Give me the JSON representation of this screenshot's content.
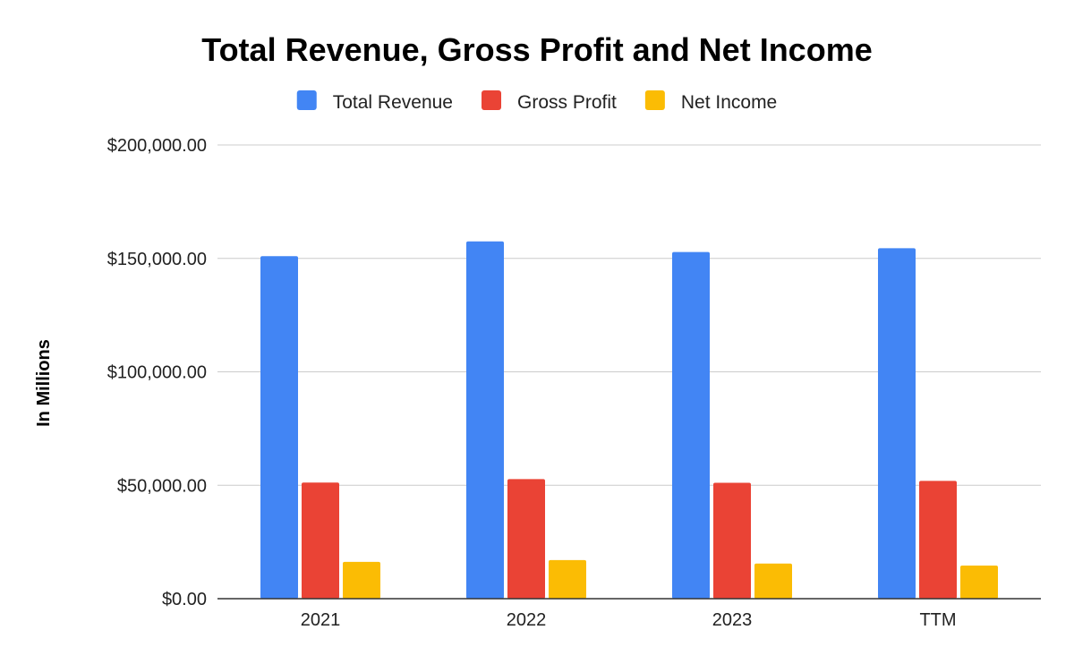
{
  "chart_data": {
    "type": "bar",
    "title": "Total Revenue, Gross Profit and Net Income",
    "xlabel": "",
    "ylabel": "In Millions",
    "categories": [
      "2021",
      "2022",
      "2023",
      "TTM"
    ],
    "series": [
      {
        "name": "Total Revenue",
        "color": "#4285f4",
        "values": [
          151000,
          157500,
          152800,
          154500
        ]
      },
      {
        "name": "Gross Profit",
        "color": "#ea4335",
        "values": [
          51200,
          52700,
          51100,
          51900
        ]
      },
      {
        "name": "Net Income",
        "color": "#fbbc04",
        "values": [
          16200,
          17000,
          15500,
          14600
        ]
      }
    ],
    "ylim": [
      0,
      200000
    ],
    "yticks": [
      {
        "value": 0,
        "label": "$0.00"
      },
      {
        "value": 50000,
        "label": "$50,000.00"
      },
      {
        "value": 100000,
        "label": "$100,000.00"
      },
      {
        "value": 150000,
        "label": "$150,000.00"
      },
      {
        "value": 200000,
        "label": "$200,000.00"
      }
    ],
    "grid": true,
    "legend_position": "top-center"
  }
}
